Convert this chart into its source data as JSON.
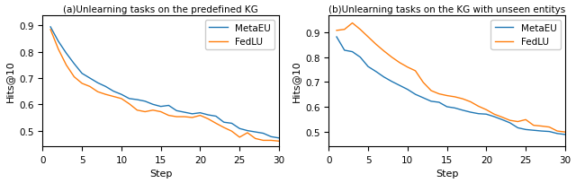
{
  "title_a": "(a)Unlearning tasks on the predefined KG",
  "title_b": "(b)Unlearning tasks on the KG with unseen entitys",
  "xlabel": "Step",
  "ylabel": "Hits@10",
  "color_metaeu": "#1f77b4",
  "color_fedlu": "#ff7f0e",
  "legend_labels": [
    "MetaEU",
    "FedLU"
  ],
  "steps": [
    1,
    2,
    3,
    4,
    5,
    6,
    7,
    8,
    9,
    10,
    11,
    12,
    13,
    14,
    15,
    16,
    17,
    18,
    19,
    20,
    21,
    22,
    23,
    24,
    25,
    26,
    27,
    28,
    29,
    30
  ],
  "a_metaeu": [
    0.895,
    0.84,
    0.795,
    0.755,
    0.718,
    0.7,
    0.682,
    0.668,
    0.65,
    0.638,
    0.622,
    0.618,
    0.612,
    0.6,
    0.592,
    0.596,
    0.576,
    0.57,
    0.564,
    0.568,
    0.56,
    0.555,
    0.532,
    0.528,
    0.508,
    0.5,
    0.495,
    0.49,
    0.477,
    0.472
  ],
  "a_fedlu": [
    0.885,
    0.81,
    0.75,
    0.705,
    0.68,
    0.668,
    0.648,
    0.638,
    0.63,
    0.622,
    0.602,
    0.578,
    0.572,
    0.578,
    0.572,
    0.558,
    0.553,
    0.553,
    0.55,
    0.558,
    0.545,
    0.528,
    0.512,
    0.498,
    0.475,
    0.492,
    0.47,
    0.463,
    0.463,
    0.46
  ],
  "b_metaeu": [
    0.882,
    0.828,
    0.822,
    0.8,
    0.762,
    0.742,
    0.72,
    0.702,
    0.686,
    0.67,
    0.65,
    0.636,
    0.622,
    0.618,
    0.6,
    0.595,
    0.586,
    0.578,
    0.572,
    0.57,
    0.56,
    0.548,
    0.535,
    0.515,
    0.508,
    0.505,
    0.502,
    0.5,
    0.492,
    0.488
  ],
  "b_fedlu": [
    0.908,
    0.912,
    0.938,
    0.912,
    0.882,
    0.852,
    0.825,
    0.8,
    0.778,
    0.76,
    0.745,
    0.698,
    0.665,
    0.652,
    0.645,
    0.64,
    0.632,
    0.62,
    0.602,
    0.588,
    0.57,
    0.558,
    0.545,
    0.54,
    0.548,
    0.525,
    0.522,
    0.518,
    0.502,
    0.498
  ],
  "ylim_a": [
    0.44,
    0.94
  ],
  "ylim_b": [
    0.44,
    0.97
  ],
  "yticks_a": [
    0.5,
    0.6,
    0.7,
    0.8,
    0.9
  ],
  "yticks_b": [
    0.5,
    0.6,
    0.7,
    0.8,
    0.9
  ],
  "xticks": [
    0,
    5,
    10,
    15,
    20,
    25,
    30
  ]
}
